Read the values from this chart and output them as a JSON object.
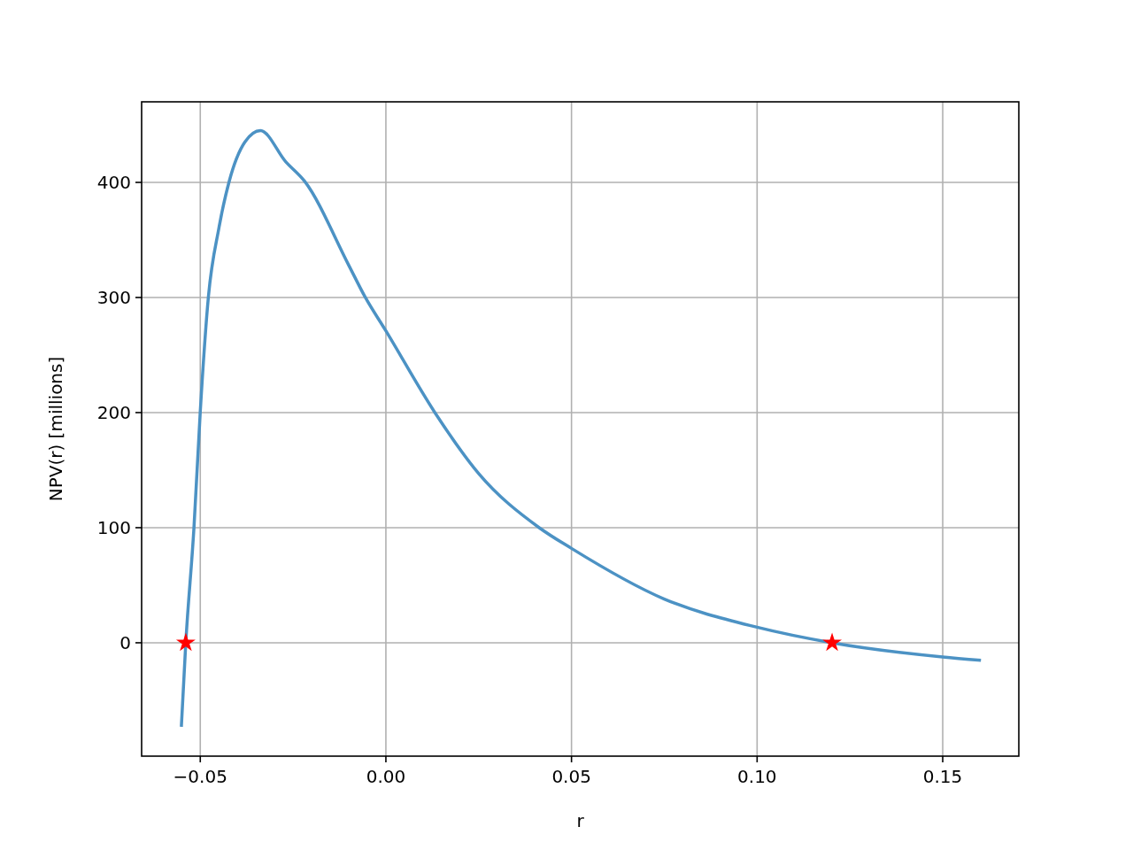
{
  "chart_data": {
    "type": "line",
    "xlabel": "r",
    "ylabel": "NPV(r) [millions]",
    "xlim": [
      -0.0658,
      0.1705
    ],
    "ylim": [
      -98.5,
      470
    ],
    "xticks": [
      {
        "value": -0.05,
        "label": "−0.05"
      },
      {
        "value": 0,
        "label": "0.00"
      },
      {
        "value": 0.05,
        "label": "0.05"
      },
      {
        "value": 0.1,
        "label": "0.10"
      },
      {
        "value": 0.15,
        "label": "0.15"
      }
    ],
    "yticks": [
      0,
      100,
      200,
      300,
      400
    ],
    "grid": true,
    "series": [
      {
        "color": "#4c92c4",
        "x": [
          -0.0551,
          -0.0539,
          -0.0517,
          -0.05,
          -0.0478,
          -0.045,
          -0.0422,
          -0.038,
          -0.0338,
          -0.027,
          -0.0219,
          -0.01,
          -0.0057,
          0,
          0.0132,
          0.025,
          0.0413,
          0.05,
          0.075,
          0.1,
          0.1202,
          0.15,
          0.1603
        ],
        "values": [
          -73,
          0,
          100,
          201,
          301,
          360,
          401,
          435,
          445,
          418,
          401,
          328,
          301,
          271,
          200,
          147,
          100,
          82,
          38,
          13.5,
          0,
          -12.3,
          -15.2
        ]
      },
      {
        "type": "scatter",
        "color": "#ff0000",
        "marker": "star",
        "x": [
          -0.0539,
          0.1202
        ],
        "values": [
          0,
          0
        ]
      }
    ]
  }
}
